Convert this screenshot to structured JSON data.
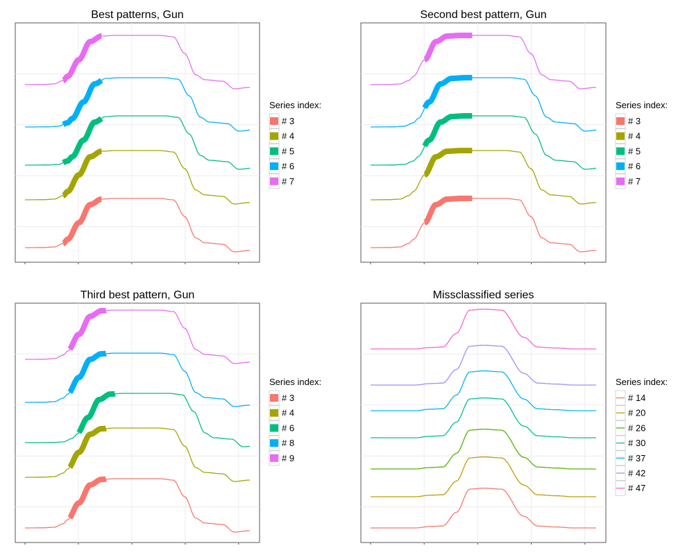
{
  "chart_data": [
    {
      "type": "line",
      "title": "Best patterns, Gun",
      "legend": {
        "title": "Series index:",
        "placement": "right"
      },
      "grid": true,
      "series": [
        {
          "name": "# 3",
          "color": "#f8766d"
        },
        {
          "name": "# 4",
          "color": "#a3a500"
        },
        {
          "name": "# 5",
          "color": "#00bf7d"
        },
        {
          "name": "# 6",
          "color": "#00b0f6"
        },
        {
          "name": "# 7",
          "color": "#e76bf3"
        }
      ]
    },
    {
      "type": "line",
      "title": "Second best pattern, Gun",
      "legend": {
        "title": "Series index:",
        "placement": "right"
      },
      "grid": true,
      "series": [
        {
          "name": "# 3",
          "color": "#f8766d"
        },
        {
          "name": "# 4",
          "color": "#a3a500"
        },
        {
          "name": "# 5",
          "color": "#00bf7d"
        },
        {
          "name": "# 6",
          "color": "#00b0f6"
        },
        {
          "name": "# 7",
          "color": "#e76bf3"
        }
      ]
    },
    {
      "type": "line",
      "title": "Third best pattern, Gun",
      "legend": {
        "title": "Series index:",
        "placement": "right"
      },
      "grid": true,
      "series": [
        {
          "name": "# 3",
          "color": "#f8766d"
        },
        {
          "name": "# 4",
          "color": "#a3a500"
        },
        {
          "name": "# 6",
          "color": "#00bf7d"
        },
        {
          "name": "# 8",
          "color": "#00b0f6"
        },
        {
          "name": "# 9",
          "color": "#e76bf3"
        }
      ]
    },
    {
      "type": "line",
      "title": "Missclassified series",
      "legend": {
        "title": "Series index:",
        "placement": "right"
      },
      "grid": true,
      "series": [
        {
          "name": "# 14",
          "color": "#f8766d"
        },
        {
          "name": "# 20",
          "color": "#c49a00"
        },
        {
          "name": "# 26",
          "color": "#53b400"
        },
        {
          "name": "# 30",
          "color": "#00c094"
        },
        {
          "name": "# 37",
          "color": "#00b6eb"
        },
        {
          "name": "# 42",
          "color": "#a58aff"
        },
        {
          "name": "# 47",
          "color": "#fb61d7"
        }
      ]
    }
  ]
}
